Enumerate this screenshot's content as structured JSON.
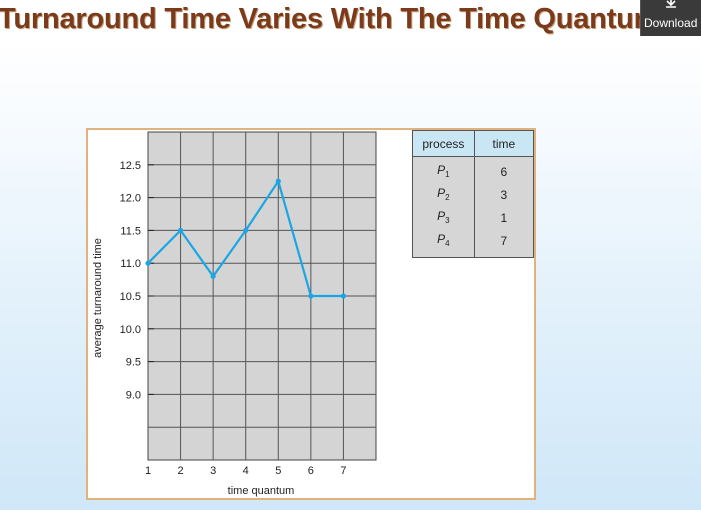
{
  "slide": {
    "title": "Turnaround Time Varies With The Time Quantum",
    "title_color": "#7a3b1c"
  },
  "download": {
    "label": "Download",
    "icon": "download-arrow-icon"
  },
  "chart_data": {
    "type": "line",
    "x": [
      1,
      2,
      3,
      4,
      5,
      6,
      7
    ],
    "values": [
      11.0,
      11.5,
      10.8,
      11.5,
      12.25,
      10.5,
      10.5
    ],
    "xlabel": "time quantum",
    "ylabel": "average turnaround time",
    "x_ticks": [
      "1",
      "2",
      "3",
      "4",
      "5",
      "6",
      "7"
    ],
    "y_ticks": [
      "9.0",
      "9.5",
      "10.0",
      "10.5",
      "11.0",
      "11.5",
      "12.0",
      "12.5"
    ],
    "xlim": [
      1,
      8
    ],
    "ylim": [
      8.0,
      13.0
    ],
    "grid": true,
    "line_color": "#1aa6e4",
    "plot_background": "#d4d4d4"
  },
  "process_table": {
    "headers": [
      "process",
      "time"
    ],
    "rows": [
      {
        "name": "P",
        "sub": "1",
        "time": "6"
      },
      {
        "name": "P",
        "sub": "2",
        "time": "3"
      },
      {
        "name": "P",
        "sub": "3",
        "time": "1"
      },
      {
        "name": "P",
        "sub": "4",
        "time": "7"
      }
    ]
  }
}
